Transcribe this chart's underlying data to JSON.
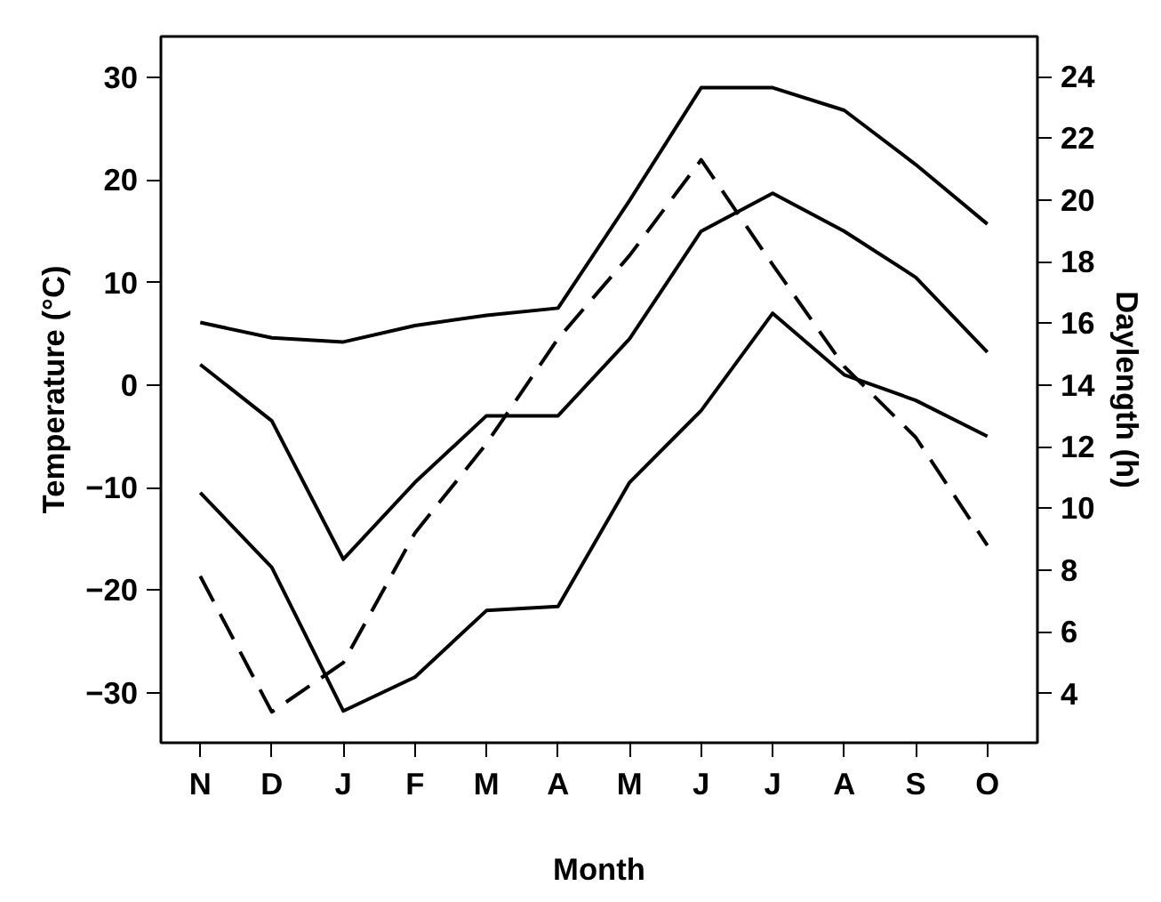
{
  "chart_data": {
    "type": "line",
    "xlabel": "Month",
    "ylabel": "Temperature (°C)",
    "y2label": "Daylength (h)",
    "categories": [
      "N",
      "D",
      "J",
      "F",
      "M",
      "A",
      "M",
      "J",
      "J",
      "A",
      "S",
      "O"
    ],
    "series": [
      {
        "color": "#000000",
        "line_style": "solid",
        "values": [
          6.1,
          4.6,
          4.2,
          5.8,
          6.8,
          7.5,
          18,
          29,
          29,
          26.8,
          21.5,
          15.7
        ]
      },
      {
        "color": "#000000",
        "line_style": "solid",
        "values": [
          2,
          -3.5,
          -17,
          -9.5,
          -3,
          -3,
          4.5,
          15,
          18.7,
          15,
          10.5,
          3.2
        ]
      },
      {
        "color": "#000000",
        "line_style": "solid",
        "values": [
          -10.5,
          -17.8,
          -31.8,
          -28.5,
          -22,
          -21.6,
          -9.5,
          -2.5,
          7,
          1,
          -1.5,
          -5
        ]
      },
      {
        "color": "#000000",
        "line_style": "dashed",
        "axis": "y2",
        "values": [
          7.8,
          3.4,
          5,
          9.2,
          12.1,
          15.5,
          18.2,
          21.3,
          17.9,
          14.6,
          12.3,
          8.8
        ]
      }
    ],
    "ylim": [
      -34.9,
      34
    ],
    "yticks": [
      -30,
      -20,
      -10,
      0,
      10,
      20,
      30
    ],
    "y2lim": [
      2.4,
      25.3
    ],
    "y2ticks": [
      4,
      6,
      8,
      10,
      12,
      14,
      16,
      18,
      20,
      22,
      24
    ],
    "grid": false,
    "marker": "none"
  }
}
